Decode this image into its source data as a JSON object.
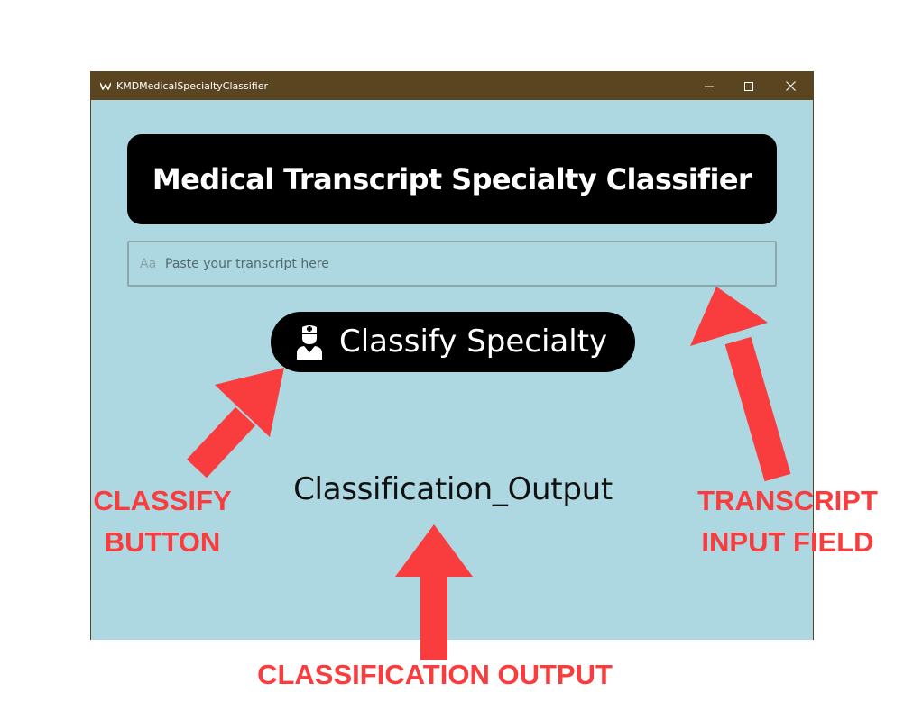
{
  "window": {
    "title": "KMDMedicalSpecialtyClassifier",
    "controls": {
      "minimize_icon": "minimize-icon",
      "maximize_icon": "maximize-icon",
      "close_icon": "close-icon"
    }
  },
  "app": {
    "heading": "Medical Transcript Specialty Classifier",
    "transcript_input": {
      "icon_glyph": "Aa",
      "value": "",
      "placeholder": "Paste your transcript here"
    },
    "classify_button": {
      "icon": "doctor-icon",
      "label": "Classify Specialty"
    },
    "output_text": "Classification_Output"
  },
  "annotations": {
    "classify_button": "CLASSIFY\nBUTTON",
    "transcript_input": "TRANSCRIPT\nINPUT FIELD",
    "classification_output": "CLASSIFICATION OUTPUT"
  },
  "colors": {
    "titlebar": "#5b4420",
    "window_background": "#add8e2",
    "banner_background": "#000000",
    "annotation": "#f93c3d"
  }
}
